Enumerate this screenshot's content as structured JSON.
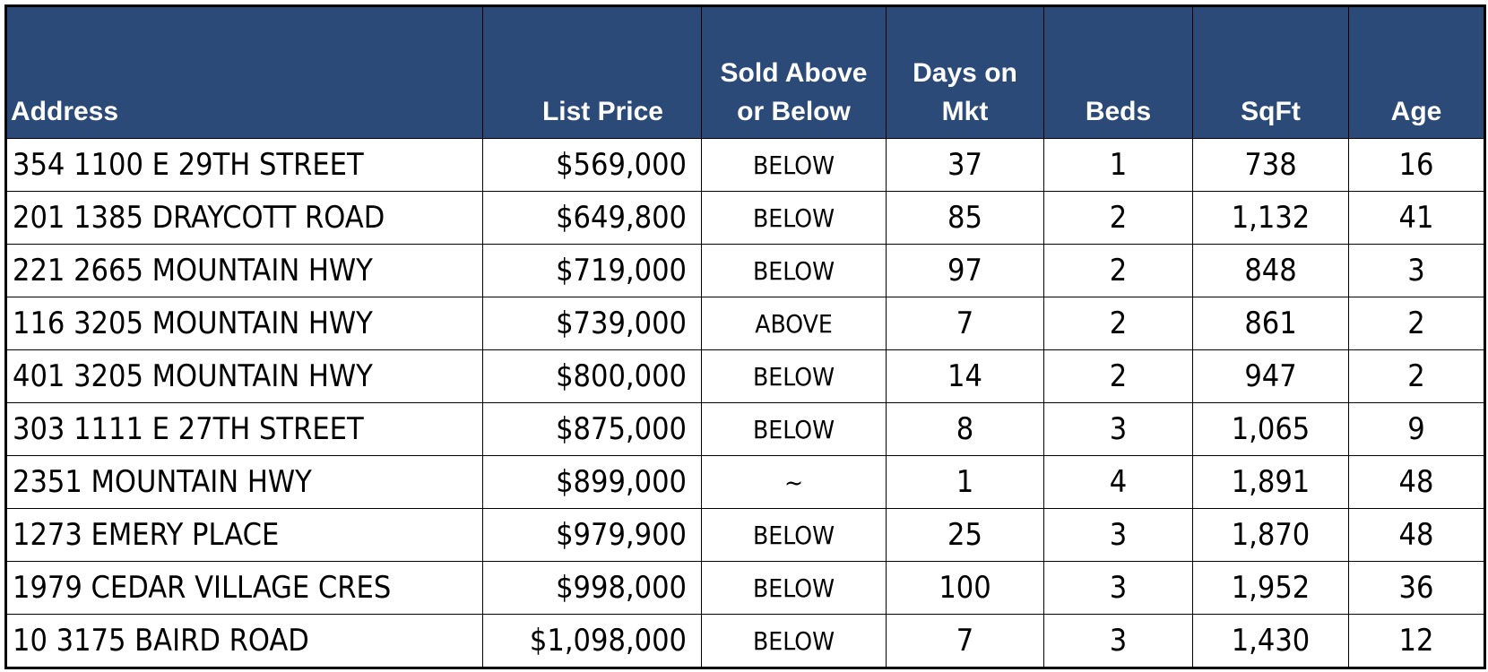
{
  "header_color": "#2B4A78",
  "columns": [
    "Address",
    "List Price",
    "Sold Above or Below",
    "Days on Mkt",
    "Beds",
    "SqFt",
    "Age"
  ],
  "column_lines": [
    [
      "Address"
    ],
    [
      "List Price"
    ],
    [
      "Sold Above",
      "or Below"
    ],
    [
      "Days on",
      "Mkt"
    ],
    [
      "Beds"
    ],
    [
      "SqFt"
    ],
    [
      "Age"
    ]
  ],
  "rows": [
    [
      "354 1100 E 29TH STREET",
      "$569,000",
      "BELOW",
      "37",
      "1",
      "738",
      "16"
    ],
    [
      "201 1385 DRAYCOTT ROAD",
      "$649,800",
      "BELOW",
      "85",
      "2",
      "1,132",
      "41"
    ],
    [
      "221 2665 MOUNTAIN HWY",
      "$719,000",
      "BELOW",
      "97",
      "2",
      "848",
      "3"
    ],
    [
      "116 3205 MOUNTAIN HWY",
      "$739,000",
      "ABOVE",
      "7",
      "2",
      "861",
      "2"
    ],
    [
      "401 3205 MOUNTAIN HWY",
      "$800,000",
      "BELOW",
      "14",
      "2",
      "947",
      "2"
    ],
    [
      "303 1111 E 27TH STREET",
      "$875,000",
      "BELOW",
      "8",
      "3",
      "1,065",
      "9"
    ],
    [
      "2351 MOUNTAIN HWY",
      "$899,000",
      "~",
      "1",
      "4",
      "1,891",
      "48"
    ],
    [
      "1273 EMERY PLACE",
      "$979,900",
      "BELOW",
      "25",
      "3",
      "1,870",
      "48"
    ],
    [
      "1979 CEDAR VILLAGE CRES",
      "$998,000",
      "BELOW",
      "100",
      "3",
      "1,952",
      "36"
    ],
    [
      "10 3175 BAIRD ROAD",
      "$1,098,000",
      "BELOW",
      "7",
      "3",
      "1,430",
      "12"
    ]
  ]
}
